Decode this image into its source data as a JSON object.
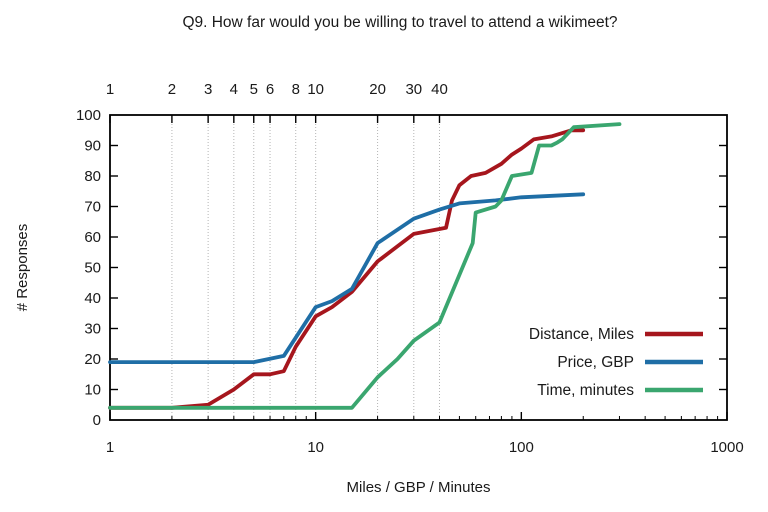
{
  "title": "Q9. How far would you be willing to travel to attend a wikimeet?",
  "colors": {
    "distance": "#a6161d",
    "price": "#1f6ea6",
    "time": "#3aa66f",
    "axis": "#000000",
    "grid": "#b5b5b5",
    "text": "#1a1a1a",
    "background": "#ffffff"
  },
  "legend": {
    "position": "bottom-right",
    "entries": [
      {
        "label": "Distance, Miles",
        "color": "#a6161d"
      },
      {
        "label": "Price, GBP",
        "color": "#1f6ea6"
      },
      {
        "label": "Time, minutes",
        "color": "#3aa66f"
      }
    ]
  },
  "chart_data": {
    "type": "line",
    "title": "Q9. How far would you be willing to travel to attend a wikimeet?",
    "xlabel": "Miles / GBP / Minutes",
    "ylabel": "# Responses",
    "xscale": "log",
    "xlim": [
      1,
      1000
    ],
    "ylim": [
      0,
      100
    ],
    "x_major_tick_labels": [
      "1",
      "10",
      "100",
      "1000"
    ],
    "x_major_ticks": [
      1,
      10,
      100,
      1000
    ],
    "y_ticks": [
      0,
      10,
      20,
      30,
      40,
      50,
      60,
      70,
      80,
      90,
      100
    ],
    "top_axis_ticks": [
      1,
      2,
      3,
      4,
      5,
      6,
      8,
      10,
      20,
      30,
      40
    ],
    "gridlines_x": [
      2,
      3,
      4,
      5,
      6,
      8,
      10,
      20,
      30,
      40
    ],
    "grid": "vertical-dotted",
    "legend_position": "bottom-right",
    "series": [
      {
        "name": "Distance, Miles",
        "slug": "distance-miles",
        "color": "#a6161d",
        "points": [
          [
            1,
            4
          ],
          [
            2,
            4
          ],
          [
            3,
            5
          ],
          [
            4,
            10
          ],
          [
            5,
            15
          ],
          [
            6,
            15
          ],
          [
            7,
            16
          ],
          [
            8,
            24
          ],
          [
            10,
            34
          ],
          [
            12,
            37
          ],
          [
            15,
            42
          ],
          [
            20,
            52
          ],
          [
            25,
            57
          ],
          [
            30,
            61
          ],
          [
            43,
            63
          ],
          [
            46,
            72
          ],
          [
            50,
            77
          ],
          [
            57,
            80
          ],
          [
            67,
            81
          ],
          [
            80,
            84
          ],
          [
            90,
            87
          ],
          [
            100,
            89
          ],
          [
            115,
            92
          ],
          [
            140,
            93
          ],
          [
            175,
            95
          ],
          [
            200,
            95
          ]
        ]
      },
      {
        "name": "Price, GBP",
        "slug": "price-gbp",
        "color": "#1f6ea6",
        "points": [
          [
            1,
            19
          ],
          [
            5,
            19
          ],
          [
            7,
            21
          ],
          [
            10,
            37
          ],
          [
            12,
            39
          ],
          [
            15,
            43
          ],
          [
            20,
            58
          ],
          [
            30,
            66
          ],
          [
            40,
            69
          ],
          [
            50,
            71
          ],
          [
            75,
            72
          ],
          [
            100,
            73
          ],
          [
            200,
            74
          ]
        ]
      },
      {
        "name": "Time, minutes",
        "slug": "time-minutes",
        "color": "#3aa66f",
        "points": [
          [
            1,
            4
          ],
          [
            15,
            4
          ],
          [
            20,
            14
          ],
          [
            25,
            20
          ],
          [
            30,
            26
          ],
          [
            40,
            32
          ],
          [
            58,
            58
          ],
          [
            60,
            68
          ],
          [
            75,
            70
          ],
          [
            80,
            72
          ],
          [
            90,
            80
          ],
          [
            112,
            81
          ],
          [
            122,
            90
          ],
          [
            140,
            90
          ],
          [
            150,
            91
          ],
          [
            158,
            92
          ],
          [
            180,
            96
          ],
          [
            300,
            97
          ]
        ]
      }
    ]
  }
}
